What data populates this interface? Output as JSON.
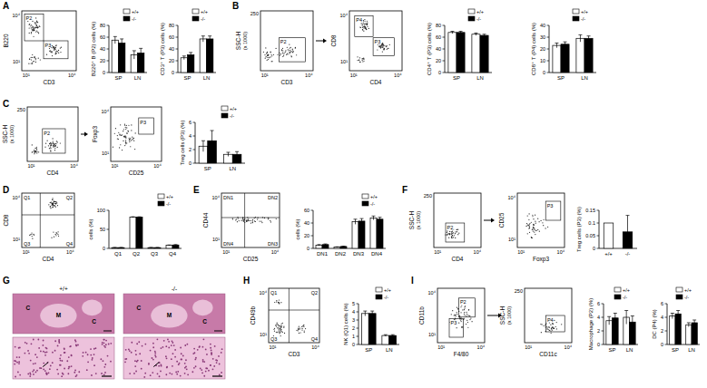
{
  "letters": [
    "A",
    "B",
    "C",
    "D",
    "E",
    "F",
    "G",
    "H",
    "I"
  ],
  "flow_plots": [
    {
      "x_label": "CD3",
      "y_label": "B220",
      "x_ticks": [
        "10¹",
        "10⁴"
      ],
      "y_ticks": [
        "10¹",
        "10⁴"
      ],
      "gates": [
        "P2",
        "P3"
      ]
    },
    {
      "x_label": "CD3",
      "y_label": "SSC-H",
      "y_unit": "(x 1000)",
      "x_ticks": [
        "10¹",
        "10⁴"
      ],
      "y_ticks": [
        "250"
      ],
      "gates": [
        "P2"
      ]
    },
    {
      "x_label": "CD4",
      "y_label": "CD8",
      "x_ticks": [
        "10¹",
        "10⁴"
      ],
      "y_ticks": [
        "10¹",
        "10⁴"
      ],
      "gates": [
        "P4",
        "P3"
      ]
    },
    {
      "x_label": "CD4",
      "y_label": "SSC-H",
      "y_unit": "(x 1000)",
      "x_ticks": [
        "10¹",
        "10⁴"
      ],
      "y_ticks": [
        "250"
      ],
      "gates": [
        "P2"
      ]
    },
    {
      "x_label": "CD25",
      "y_label": "Foxp3",
      "x_ticks": [
        "10¹",
        "10⁴"
      ],
      "y_ticks": [
        "10¹",
        "10⁴"
      ],
      "gates": [
        "P3"
      ]
    },
    {
      "x_label": "CD4",
      "y_label": "CD8",
      "x_ticks": [
        "10¹",
        "10⁴"
      ],
      "y_ticks": [
        "10¹",
        "10⁴"
      ],
      "gates": [
        "Q1",
        "Q2",
        "Q3",
        "Q4"
      ]
    },
    {
      "x_label": "CD25",
      "y_label": "CD44",
      "x_ticks": [
        "10¹",
        "10⁴"
      ],
      "y_ticks": [
        "10¹",
        "10⁴"
      ],
      "gates": [
        "DN1",
        "DN2",
        "DN3",
        "DN4"
      ]
    },
    {
      "x_label": "CD4",
      "y_label": "SSC-H",
      "y_unit": "(x 1000)",
      "x_ticks": [
        "10¹",
        "10⁴"
      ],
      "y_ticks": [
        "250"
      ],
      "gates": [
        "P2"
      ]
    },
    {
      "x_label": "Foxp3",
      "y_label": "CD25",
      "x_ticks": [
        "10¹",
        "10⁴"
      ],
      "y_ticks": [
        "10¹",
        "10⁴"
      ],
      "gates": [
        "P3"
      ]
    },
    {
      "x_label": "CD3",
      "y_label": "CD49b",
      "x_ticks": [
        "10¹",
        "10⁴"
      ],
      "y_ticks": [
        "10¹",
        "10⁴"
      ],
      "gates": [
        "Q1",
        "Q2",
        "Q3",
        "Q4"
      ]
    },
    {
      "x_label": "F4/80",
      "y_label": "CD11b",
      "x_ticks": [
        "10¹",
        "10⁴"
      ],
      "y_ticks": [
        "10¹",
        "10⁴"
      ],
      "gates": [
        "P2",
        "P3"
      ]
    },
    {
      "x_label": "CD11c",
      "y_label": "SSC-H",
      "y_unit": "(x 1000)",
      "x_ticks": [
        "10¹",
        "10⁴"
      ],
      "y_ticks": [
        "250"
      ],
      "gates": [
        "P4"
      ]
    }
  ],
  "histology": {
    "genotypes": [
      "+/+",
      "-/-"
    ],
    "regions": [
      [
        "C",
        "M",
        "C"
      ],
      [
        "C",
        "M",
        "C"
      ]
    ]
  },
  "chart_data": [
    {
      "type": "bar",
      "ylabel": "B220⁺ B (P2) cells (%)",
      "categories": [
        "SP",
        "LN"
      ],
      "series": [
        {
          "name": "+/+",
          "color": "#ffffff",
          "values": [
            55,
            30
          ],
          "errors": [
            6,
            7
          ]
        },
        {
          "name": "-/-",
          "color": "#000000",
          "values": [
            50,
            33
          ],
          "errors": [
            7,
            8
          ]
        }
      ],
      "ylim": [
        0,
        80
      ],
      "yticks": [
        0,
        20,
        40,
        60,
        80
      ],
      "grid": false,
      "legend": "top-right"
    },
    {
      "type": "bar",
      "ylabel": "CD3⁺ T (P3) cells (%)",
      "categories": [
        "SP",
        "LN"
      ],
      "series": [
        {
          "name": "+/+",
          "color": "#ffffff",
          "values": [
            25,
            57
          ],
          "errors": [
            3,
            5
          ]
        },
        {
          "name": "-/-",
          "color": "#000000",
          "values": [
            30,
            57
          ],
          "errors": [
            4,
            5
          ]
        }
      ],
      "ylim": [
        0,
        80
      ],
      "yticks": [
        0,
        20,
        40,
        60,
        80
      ],
      "grid": false,
      "legend": "top-right"
    },
    {
      "type": "bar",
      "ylabel": "CD4⁺ T (P3) cells (%)",
      "categories": [
        "SP",
        "LN"
      ],
      "series": [
        {
          "name": "+/+",
          "color": "#ffffff",
          "values": [
            68,
            65
          ],
          "errors": [
            2,
            2
          ]
        },
        {
          "name": "-/-",
          "color": "#000000",
          "values": [
            68,
            63
          ],
          "errors": [
            2,
            2
          ]
        }
      ],
      "ylim": [
        0,
        80
      ],
      "yticks": [
        0,
        20,
        40,
        60,
        80
      ],
      "grid": false,
      "legend": "top-right"
    },
    {
      "type": "bar",
      "ylabel": "CD8⁺ T (P4) cells (%)",
      "categories": [
        "SP",
        "LN"
      ],
      "series": [
        {
          "name": "+/+",
          "color": "#ffffff",
          "values": [
            23,
            29
          ],
          "errors": [
            2,
            3
          ]
        },
        {
          "name": "-/-",
          "color": "#000000",
          "values": [
            24,
            29
          ],
          "errors": [
            2,
            2
          ]
        }
      ],
      "ylim": [
        0,
        40
      ],
      "yticks": [
        0,
        10,
        20,
        30,
        40
      ],
      "grid": false,
      "legend": "top-right"
    },
    {
      "type": "bar",
      "ylabel": "Treg cells (P3) (%)",
      "categories": [
        "SP",
        "LN"
      ],
      "series": [
        {
          "name": "+/+",
          "color": "#ffffff",
          "values": [
            2.5,
            1.3
          ],
          "errors": [
            0.8,
            0.3
          ]
        },
        {
          "name": "-/-",
          "color": "#000000",
          "values": [
            3.3,
            1.3
          ],
          "errors": [
            1.5,
            0.4
          ]
        }
      ],
      "ylim": [
        0,
        6
      ],
      "yticks": [
        0,
        2,
        4,
        6
      ],
      "grid": false,
      "legend": "top-right"
    },
    {
      "type": "bar",
      "ylabel": "cells (%)",
      "categories": [
        "Q1",
        "Q2",
        "Q3",
        "Q4"
      ],
      "series": [
        {
          "name": "+/+",
          "color": "#ffffff",
          "values": [
            2,
            82,
            2,
            8
          ],
          "errors": [
            0.5,
            1,
            0.5,
            1
          ]
        },
        {
          "name": "-/-",
          "color": "#000000",
          "values": [
            2,
            82,
            2,
            9
          ],
          "errors": [
            0.5,
            1,
            0.5,
            1
          ]
        }
      ],
      "ylim": [
        0,
        100
      ],
      "yticks": [
        0,
        50,
        100
      ],
      "grid": false,
      "legend": "top-right"
    },
    {
      "type": "bar",
      "ylabel": "cells (%)",
      "categories": [
        "DN1",
        "DN2",
        "DN3",
        "DN4"
      ],
      "series": [
        {
          "name": "+/+",
          "color": "#ffffff",
          "values": [
            5,
            2,
            42,
            48
          ],
          "errors": [
            1,
            0.5,
            4,
            3
          ]
        },
        {
          "name": "-/-",
          "color": "#000000",
          "values": [
            6,
            3,
            43,
            46
          ],
          "errors": [
            1,
            0.5,
            4,
            3
          ]
        }
      ],
      "ylim": [
        0,
        60
      ],
      "yticks": [
        0,
        20,
        40,
        60
      ],
      "grid": false,
      "legend": "top-right"
    },
    {
      "type": "bar",
      "ylabel": "Treg cells (P3) (%)",
      "categories": [
        "+/+",
        "-/-"
      ],
      "values": [
        0.1,
        0.065
      ],
      "errors": [
        null,
        0.065
      ],
      "colors": [
        "#ffffff",
        "#000000"
      ],
      "ylim": [
        0,
        0.15
      ],
      "yticks": [
        0,
        0.05,
        0.1,
        0.15
      ],
      "grid": false
    },
    {
      "type": "bar",
      "ylabel": "NK (Q1) cells (%)",
      "categories": [
        "SP",
        "LN"
      ],
      "series": [
        {
          "name": "+/+",
          "color": "#ffffff",
          "values": [
            3.8,
            1.1
          ],
          "errors": [
            0.3,
            0.1
          ]
        },
        {
          "name": "-/-",
          "color": "#000000",
          "values": [
            3.8,
            1.1
          ],
          "errors": [
            0.3,
            0.1
          ]
        }
      ],
      "ylim": [
        0,
        5
      ],
      "yticks": [
        0,
        1,
        2,
        3,
        4,
        5
      ],
      "grid": false,
      "legend": "top-right"
    },
    {
      "type": "bar",
      "ylabel": "Macrophage (P2) (%)",
      "categories": [
        "SP",
        "LN"
      ],
      "series": [
        {
          "name": "+/+",
          "color": "#ffffff",
          "values": [
            3.5,
            4.0
          ],
          "errors": [
            0.6,
            1.0
          ]
        },
        {
          "name": "-/-",
          "color": "#000000",
          "values": [
            3.9,
            3.3
          ],
          "errors": [
            0.7,
            0.9
          ]
        }
      ],
      "ylim": [
        0,
        6
      ],
      "yticks": [
        0,
        2,
        4,
        6
      ],
      "grid": false,
      "legend": "top-right"
    },
    {
      "type": "bar",
      "ylabel": "DC (P4) (%)",
      "categories": [
        "SP",
        "LN"
      ],
      "series": [
        {
          "name": "+/+",
          "color": "#ffffff",
          "values": [
            4.2,
            2.9
          ],
          "errors": [
            0.4,
            0.3
          ]
        },
        {
          "name": "-/-",
          "color": "#000000",
          "values": [
            4.5,
            3.2
          ],
          "errors": [
            0.5,
            0.4
          ]
        }
      ],
      "ylim": [
        0,
        6
      ],
      "yticks": [
        0,
        2,
        4,
        6
      ],
      "grid": false,
      "legend": "top-right"
    }
  ]
}
